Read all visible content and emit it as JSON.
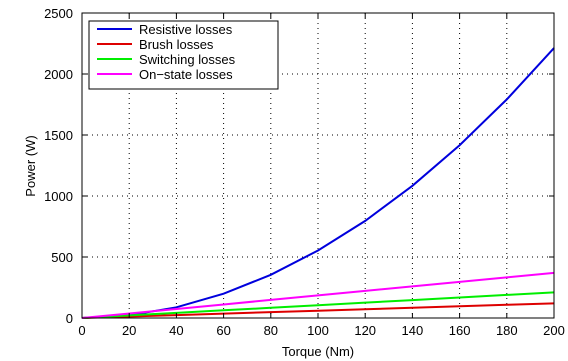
{
  "chart_data": {
    "type": "line",
    "title": "",
    "xlabel": "Torque (Nm)",
    "ylabel": "Power (W)",
    "xlim": [
      0,
      200
    ],
    "ylim": [
      0,
      2500
    ],
    "xticks": [
      0,
      20,
      40,
      60,
      80,
      100,
      120,
      140,
      160,
      180,
      200
    ],
    "yticks": [
      0,
      500,
      1000,
      1500,
      2000,
      2500
    ],
    "grid": true,
    "legend_position": "top-left",
    "x": [
      0,
      20,
      40,
      60,
      80,
      100,
      120,
      140,
      160,
      180,
      200
    ],
    "series": [
      {
        "name": "Resistive losses",
        "color": "#0000dd",
        "values": [
          0,
          22,
          88,
          199,
          354,
          553,
          796,
          1084,
          1416,
          1792,
          2212
        ]
      },
      {
        "name": "Brush losses",
        "color": "#dd0000",
        "values": [
          0,
          12,
          24,
          36,
          48,
          60,
          72,
          84,
          96,
          108,
          120
        ]
      },
      {
        "name": "Switching losses",
        "color": "#00ee00",
        "values": [
          0,
          21,
          42,
          63,
          84,
          105,
          126,
          147,
          168,
          189,
          210
        ]
      },
      {
        "name": "On−state losses",
        "color": "#ff00ff",
        "values": [
          0,
          37,
          74,
          111,
          148,
          185,
          222,
          259,
          296,
          333,
          370
        ]
      }
    ]
  }
}
